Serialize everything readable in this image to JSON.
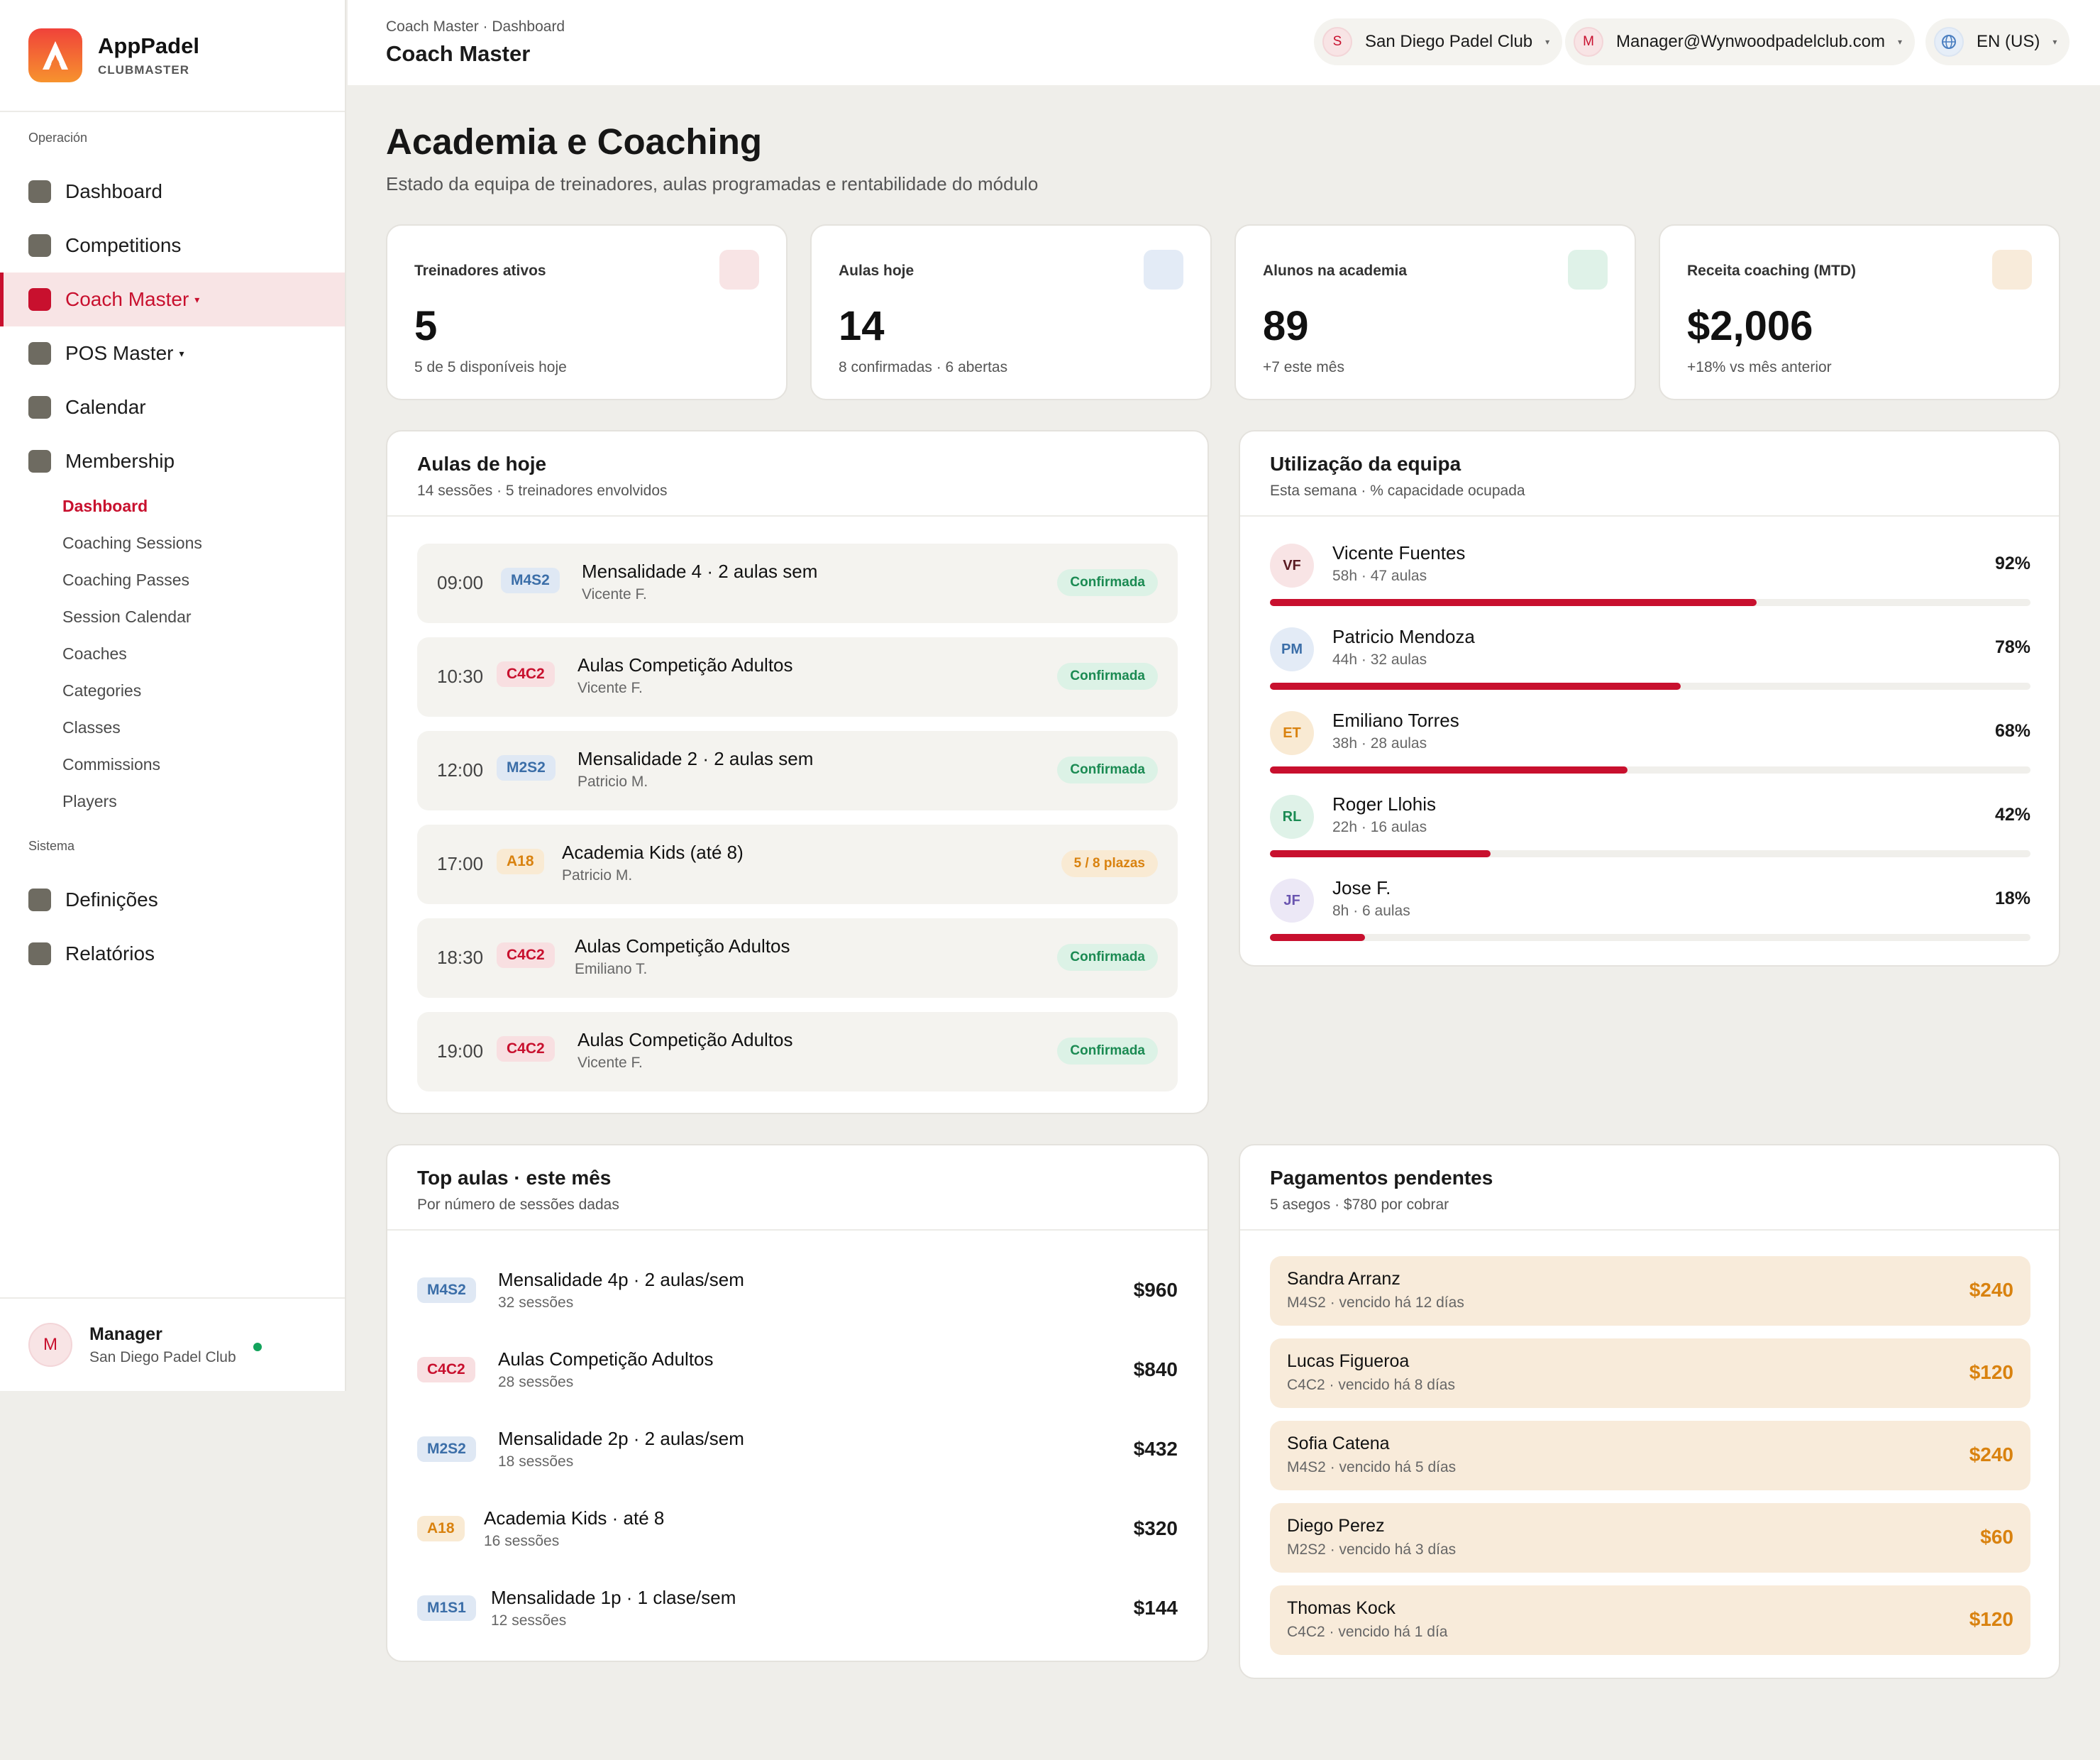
{
  "brand": {
    "name": "AppPadel",
    "sub": "CLUBMASTER"
  },
  "sidebar": {
    "section_operacion": "Operación",
    "section_sistema": "Sistema",
    "items": [
      {
        "label": "Dashboard"
      },
      {
        "label": "Competitions"
      },
      {
        "label": "Coach Master",
        "caret": "▾"
      },
      {
        "label": "POS Master",
        "caret": "▾"
      },
      {
        "label": "Calendar"
      },
      {
        "label": "Membership"
      }
    ],
    "sub_items": [
      "Dashboard",
      "Coaching Sessions",
      "Coaching Passes",
      "Session Calendar",
      "Coaches",
      "Categories",
      "Classes",
      "Commissions",
      "Players"
    ],
    "system_items": [
      {
        "label": "Definições"
      },
      {
        "label": "Relatórios"
      }
    ],
    "footer": {
      "initial": "M",
      "name": "Manager",
      "club": "San Diego Padel Club"
    }
  },
  "header": {
    "breadcrumb": "Coach Master · Dashboard",
    "title": "Coach Master",
    "club": {
      "initial": "S",
      "label": "San Diego Padel Club"
    },
    "user": {
      "initial": "M",
      "label": "Manager@Wynwoodpadelclub.com"
    },
    "lang": {
      "icon": "globe-icon",
      "label": "EN (US)"
    },
    "caret": "▾"
  },
  "page": {
    "title": "Academia e Coaching",
    "subtitle": "Estado da equipa de treinadores, aulas programadas e rentabilidade do módulo"
  },
  "stats": [
    {
      "label": "Treinadores ativos",
      "value": "5",
      "note": "5 de 5 disponíveis hoje",
      "color": "#f8e4e5"
    },
    {
      "label": "Aulas hoje",
      "value": "14",
      "note": "8 confirmadas · 6 abertas",
      "color": "#e3ebf6"
    },
    {
      "label": "Alunos na academia",
      "value": "89",
      "note": "+7 este mês",
      "color": "#dff2e8"
    },
    {
      "label": "Receita coaching (MTD)",
      "value": "$2,006",
      "note": "+18% vs mês anterior",
      "color": "#f8ebda"
    }
  ],
  "today": {
    "title": "Aulas de hoje",
    "subtitle": "14 sessões · 5 treinadores envolvidos",
    "lessons": [
      {
        "time": "09:00",
        "code": "M4S2",
        "title": "Mensalidade 4 · 2 aulas sem",
        "coach": "Vicente F.",
        "status": "Confirmada"
      },
      {
        "time": "10:30",
        "code": "C4C2",
        "title": "Aulas Competição Adultos",
        "coach": "Vicente F.",
        "status": "Confirmada"
      },
      {
        "time": "12:00",
        "code": "M2S2",
        "title": "Mensalidade 2 · 2 aulas sem",
        "coach": "Patricio M.",
        "status": "Confirmada"
      },
      {
        "time": "17:00",
        "code": "A18",
        "title": "Academia Kids (até 8)",
        "coach": "Patricio M.",
        "status": "5 / 8 plazas"
      },
      {
        "time": "18:30",
        "code": "C4C2",
        "title": "Aulas Competição Adultos",
        "coach": "Emiliano T.",
        "status": "Confirmada"
      },
      {
        "time": "19:00",
        "code": "C4C2",
        "title": "Aulas Competição Adultos",
        "coach": "Vicente F.",
        "status": "Confirmada"
      }
    ]
  },
  "utilization": {
    "title": "Utilização da equipa",
    "subtitle": "Esta semana · % capacidade ocupada",
    "accent": "#c8102e",
    "coaches": [
      {
        "initials": "VF",
        "name": "Vicente Fuentes",
        "meta": "58h · 47 aulas",
        "pct_label": "92%",
        "pct": 0.64
      },
      {
        "initials": "PM",
        "name": "Patricio Mendoza",
        "meta": "44h · 32 aulas",
        "pct_label": "78%",
        "pct": 0.54
      },
      {
        "initials": "ET",
        "name": "Emiliano Torres",
        "meta": "38h · 28 aulas",
        "pct_label": "68%",
        "pct": 0.47
      },
      {
        "initials": "RL",
        "name": "Roger Llohis",
        "meta": "22h · 16 aulas",
        "pct_label": "42%",
        "pct": 0.29
      },
      {
        "initials": "JF",
        "name": "Jose F.",
        "meta": "8h · 6 aulas",
        "pct_label": "18%",
        "pct": 0.125
      }
    ]
  },
  "top": {
    "title": "Top aulas · este mês",
    "subtitle": "Por número de sessões dadas",
    "rows": [
      {
        "code": "M4S2",
        "title": "Mensalidade 4p · 2 aulas/sem",
        "sub": "32 sessões",
        "value": "$960"
      },
      {
        "code": "C4C2",
        "title": "Aulas Competição Adultos",
        "sub": "28 sessões",
        "value": "$840"
      },
      {
        "code": "M2S2",
        "title": "Mensalidade 2p · 2 aulas/sem",
        "sub": "18 sessões",
        "value": "$432"
      },
      {
        "code": "A18",
        "title": "Academia Kids · até 8",
        "sub": "16 sessões",
        "value": "$320"
      },
      {
        "code": "M1S1",
        "title": "Mensalidade 1p · 1 clase/sem",
        "sub": "12 sessões",
        "value": "$144"
      }
    ]
  },
  "payments": {
    "title": "Pagamentos pendentes",
    "subtitle": "5 asegos · $780 por cobrar",
    "rows": [
      {
        "name": "Sandra Arranz",
        "meta": "M4S2 · vencido há 12 días",
        "value": "$240"
      },
      {
        "name": "Lucas Figueroa",
        "meta": "C4C2 · vencido há 8 días",
        "value": "$120"
      },
      {
        "name": "Sofia Catena",
        "meta": "M4S2 · vencido há 5 días",
        "value": "$240"
      },
      {
        "name": "Diego Perez",
        "meta": "M2S2 · vencido há 3 días",
        "value": "$60"
      },
      {
        "name": "Thomas Kock",
        "meta": "C4C2 · vencido há 1 día",
        "value": "$120"
      }
    ]
  }
}
